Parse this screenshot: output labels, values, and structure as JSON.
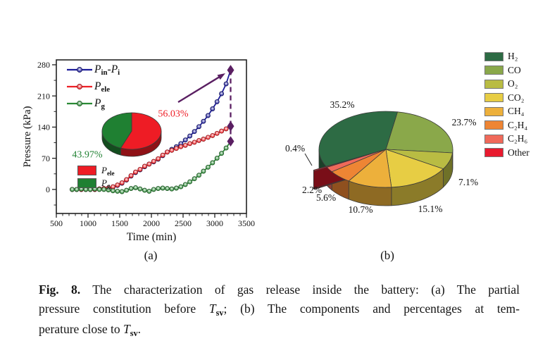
{
  "figure": {
    "panel_a_label": "(a)",
    "panel_b_label": "(b)",
    "caption": {
      "line1": [
        [
          "Fig. 8.",
          "b"
        ],
        [
          " The characterization of gas release inside the battery: (a) The partial",
          ""
        ]
      ],
      "line2": [
        [
          "pressure constitution before ",
          ""
        ],
        [
          "T",
          "i"
        ],
        [
          "sv",
          "sub"
        ],
        [
          "; (b) The components and percentages at tem-",
          ""
        ]
      ],
      "line3": [
        [
          "perature close to ",
          ""
        ],
        [
          "T",
          "i"
        ],
        [
          "sv",
          "sub"
        ],
        [
          ".",
          ""
        ]
      ]
    }
  },
  "chart_data": [
    {
      "id": "panel_a",
      "type": "line",
      "title": "",
      "xlabel": "Time (min)",
      "ylabel": "Pressure (kPa)",
      "xlim": [
        500,
        3500
      ],
      "ylim": [
        -54,
        291
      ],
      "xticks": [
        500,
        1000,
        1500,
        2000,
        2500,
        3000,
        3500
      ],
      "yticks": [
        0,
        70,
        140,
        210,
        280
      ],
      "x_minor_step": 100,
      "grid": false,
      "legend_position": "top-left",
      "series": [
        {
          "name": "Pin-Pi",
          "label_rich": [
            [
              "P",
              "i"
            ],
            [
              "in",
              "sub"
            ],
            [
              "-",
              ""
            ],
            [
              "P",
              "i"
            ],
            [
              "i",
              "sub"
            ]
          ],
          "color": "#1c1c99",
          "x0": 750,
          "dx": 71.4286,
          "y": [
            0,
            0,
            0,
            0,
            0,
            0,
            1,
            2,
            3,
            5,
            9,
            14,
            21,
            30,
            38,
            44,
            51,
            57,
            62,
            68,
            76,
            84,
            90,
            96,
            103,
            111,
            120,
            130,
            141,
            153,
            166,
            181,
            197,
            215,
            237,
            268
          ]
        },
        {
          "name": "Pele",
          "label_rich": [
            [
              "P",
              "i"
            ],
            [
              "ele",
              "sub"
            ]
          ],
          "color": "#ee2026",
          "x0": 750,
          "dx": 71.4286,
          "y": [
            0,
            0,
            0,
            0,
            0,
            0,
            1,
            2,
            3,
            6,
            10,
            15,
            22,
            31,
            39,
            45,
            52,
            57,
            63,
            69,
            77,
            84,
            88,
            92,
            96,
            99,
            103,
            106,
            110,
            113,
            117,
            121,
            126,
            131,
            136,
            142
          ]
        },
        {
          "name": "Pg",
          "label_rich": [
            [
              "P",
              "i"
            ],
            [
              "g",
              "sub"
            ]
          ],
          "color": "#2a8a35",
          "x0": 750,
          "dx": 71.4286,
          "y": [
            0,
            0,
            1,
            0,
            0,
            1,
            0,
            0,
            -1,
            -3,
            -4,
            -5,
            -2,
            2,
            4,
            1,
            -2,
            -4,
            0,
            2,
            3,
            2,
            1,
            3,
            6,
            11,
            17,
            24,
            32,
            41,
            50,
            60,
            70,
            81,
            93,
            108
          ]
        }
      ],
      "annotation": {
        "color": "#5a1f62",
        "x": 3250,
        "diamond_values": [
          268,
          142,
          108
        ]
      },
      "inset_pie": {
        "type": "pie",
        "start_angle": -90,
        "slices": [
          {
            "name": "Pele",
            "label_rich": [
              [
                "P",
                "i"
              ],
              [
                "ele",
                "sub"
              ]
            ],
            "pct": 56.03,
            "pct_display": "56.03%",
            "color": "#ee1c25"
          },
          {
            "name": "Pg",
            "label_rich": [
              [
                "P",
                "i"
              ],
              [
                "g",
                "sub"
              ]
            ],
            "pct": 43.97,
            "pct_display": "43.97%",
            "color": "#1f8032"
          }
        ]
      }
    },
    {
      "id": "panel_b",
      "type": "pie",
      "start_angle": -80,
      "slices": [
        {
          "name": "CO",
          "display": "CO",
          "pct": 23.7,
          "pct_display": "23.7%",
          "color": "#8aa84a"
        },
        {
          "name": "O2",
          "display": "O₂",
          "pct": 7.1,
          "pct_display": "7.1%",
          "color": "#b9bc43"
        },
        {
          "name": "CO2",
          "display": "CO₂",
          "pct": 15.1,
          "pct_display": "15.1%",
          "color": "#e7cd44"
        },
        {
          "name": "CH4",
          "display": "CH₄",
          "pct": 10.7,
          "pct_display": "10.7%",
          "color": "#edb03b"
        },
        {
          "name": "C2H4",
          "display": "C₂H₄",
          "pct": 5.6,
          "pct_display": "5.6%",
          "color": "#ee8534"
        },
        {
          "name": "C2H6",
          "display": "C₂H₆",
          "pct": 2.2,
          "pct_display": "2.2%",
          "color": "#f0695a"
        },
        {
          "name": "Other",
          "display": "Other",
          "pct": 0.4,
          "pct_display": "0.4%",
          "color": "#e81a2e",
          "explode": 20
        },
        {
          "name": "H2",
          "display": "H₂",
          "pct": 35.2,
          "pct_display": "35.2%",
          "color": "#2d6b44"
        }
      ],
      "legend_order": [
        "H2",
        "CO",
        "O2",
        "CO2",
        "CH4",
        "C2H4",
        "C2H6",
        "Other"
      ]
    }
  ]
}
